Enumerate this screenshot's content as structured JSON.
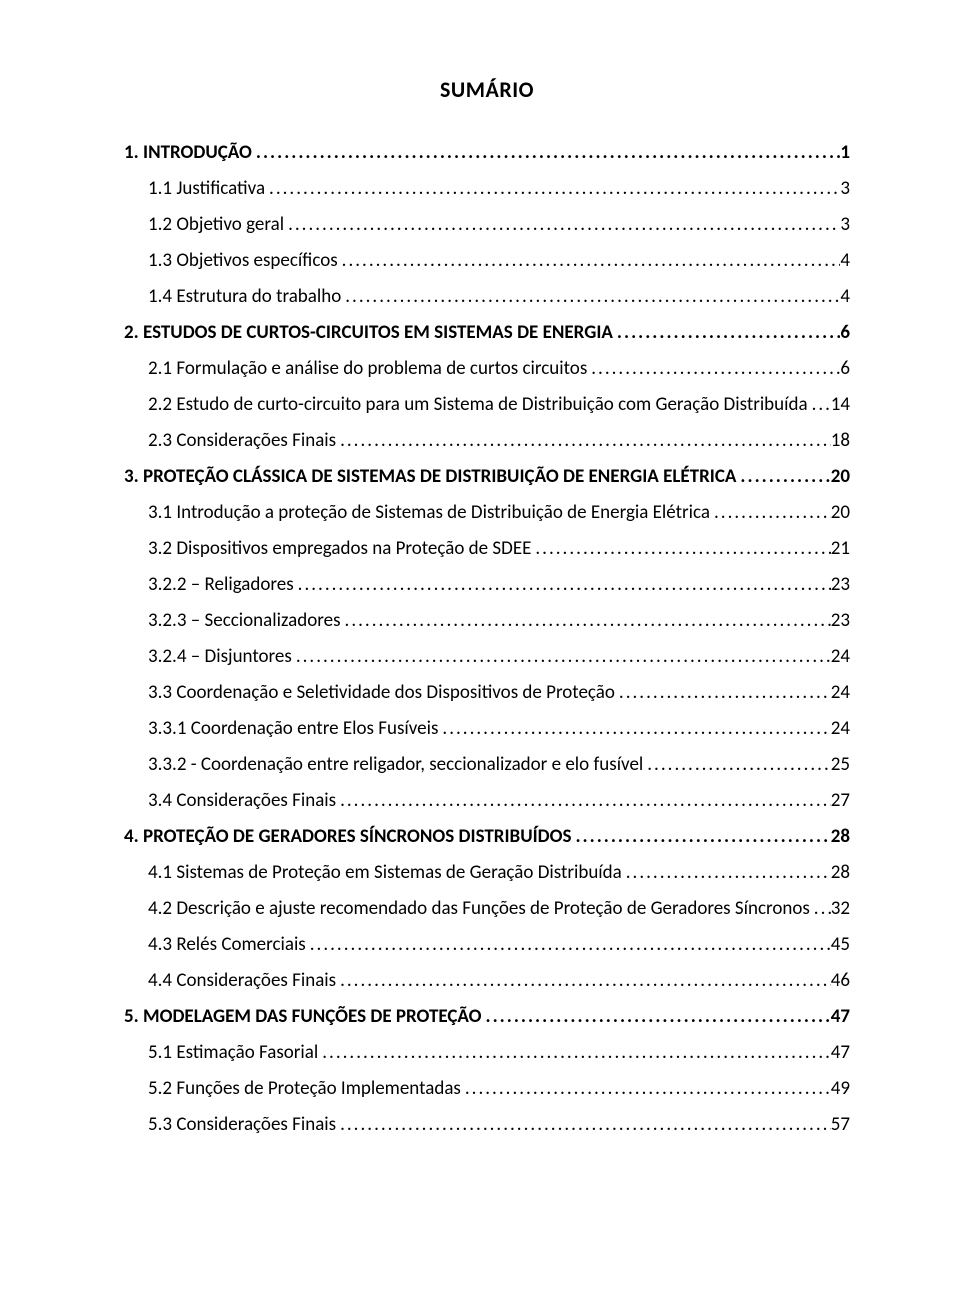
{
  "title": "SUMÁRIO",
  "text_color": "#000000",
  "background_color": "#ffffff",
  "font_family": "Calibri",
  "title_fontsize": 22,
  "row_fontsize": 19,
  "toc": [
    {
      "label": "1. INTRODUÇÃO",
      "page": "1",
      "bold": true,
      "indent": 0
    },
    {
      "label": "1.1 Justificativa",
      "page": "3",
      "bold": false,
      "indent": 1
    },
    {
      "label": "1.2 Objetivo geral",
      "page": "3",
      "bold": false,
      "indent": 1
    },
    {
      "label": "1.3 Objetivos específicos",
      "page": "4",
      "bold": false,
      "indent": 1
    },
    {
      "label": "1.4 Estrutura do trabalho",
      "page": "4",
      "bold": false,
      "indent": 1
    },
    {
      "label": "2. ESTUDOS DE CURTOS-CIRCUITOS EM SISTEMAS DE ENERGIA",
      "page": "6",
      "bold": true,
      "indent": 0
    },
    {
      "label": "2.1 Formulação e análise do problema de curtos circuitos",
      "page": "6",
      "bold": false,
      "indent": 1
    },
    {
      "label": "2.2 Estudo de curto-circuito para um Sistema de Distribuição com Geração Distribuída",
      "page": "14",
      "bold": false,
      "indent": 1
    },
    {
      "label": "2.3 Considerações Finais",
      "page": "18",
      "bold": false,
      "indent": 1
    },
    {
      "label": "3. PROTEÇÃO CLÁSSICA DE SISTEMAS DE DISTRIBUIÇÃO DE ENERGIA ELÉTRICA",
      "page": "20",
      "bold": true,
      "indent": 0
    },
    {
      "label": "3.1 Introdução a proteção de Sistemas de Distribuição de Energia Elétrica",
      "page": "20",
      "bold": false,
      "indent": 1
    },
    {
      "label": "3.2 Dispositivos empregados na Proteção de SDEE",
      "page": "21",
      "bold": false,
      "indent": 1
    },
    {
      "label": "3.2.2 – Religadores",
      "page": "23",
      "bold": false,
      "indent": 1
    },
    {
      "label": "3.2.3 – Seccionalizadores",
      "page": "23",
      "bold": false,
      "indent": 1
    },
    {
      "label": "3.2.4 – Disjuntores",
      "page": "24",
      "bold": false,
      "indent": 1
    },
    {
      "label": "3.3 Coordenação e Seletividade dos Dispositivos de Proteção",
      "page": "24",
      "bold": false,
      "indent": 1
    },
    {
      "label": "3.3.1 Coordenação entre Elos Fusíveis",
      "page": "24",
      "bold": false,
      "indent": 1
    },
    {
      "label": "3.3.2 - Coordenação entre religador, seccionalizador e elo fusível",
      "page": "25",
      "bold": false,
      "indent": 1
    },
    {
      "label": "3.4  Considerações Finais",
      "page": "27",
      "bold": false,
      "indent": 1
    },
    {
      "label": "4.  PROTEÇÃO DE GERADORES SÍNCRONOS DISTRIBUÍDOS",
      "page": "28",
      "bold": true,
      "indent": 0
    },
    {
      "label": "4.1 Sistemas de Proteção em Sistemas de Geração Distribuída",
      "page": "28",
      "bold": false,
      "indent": 1
    },
    {
      "label": "4.2 Descrição e ajuste recomendado das Funções de Proteção de Geradores Síncronos",
      "page": "32",
      "bold": false,
      "indent": 1
    },
    {
      "label": "4.3 Relés Comerciais",
      "page": "45",
      "bold": false,
      "indent": 1
    },
    {
      "label": "4.4 Considerações Finais",
      "page": "46",
      "bold": false,
      "indent": 1
    },
    {
      "label": "5. MODELAGEM DAS FUNÇÕES DE PROTEÇÃO",
      "page": "47",
      "bold": true,
      "indent": 0
    },
    {
      "label": "5.1 Estimação Fasorial",
      "page": "47",
      "bold": false,
      "indent": 1
    },
    {
      "label": "5.2 Funções de Proteção Implementadas",
      "page": "49",
      "bold": false,
      "indent": 1
    },
    {
      "label": "5.3 Considerações Finais",
      "page": "57",
      "bold": false,
      "indent": 1
    }
  ]
}
